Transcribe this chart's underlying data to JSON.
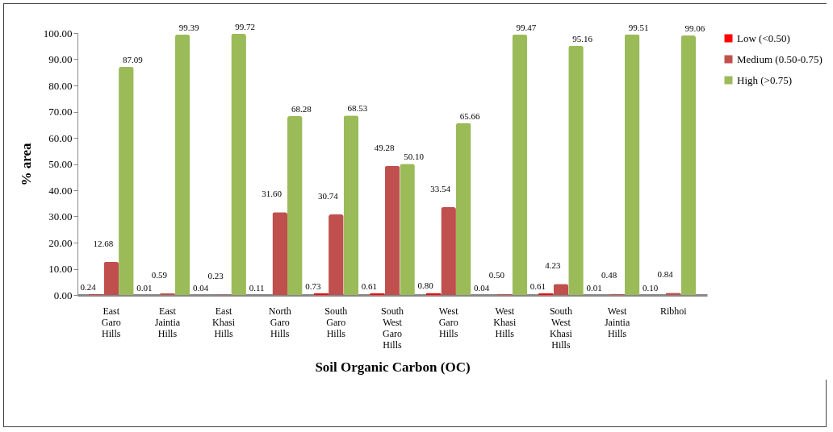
{
  "chart_data": {
    "type": "bar",
    "xlabel": "Soil Organic Carbon (OC)",
    "ylabel": "% area",
    "categories": [
      "East Garo Hills",
      "East Jaintia Hills",
      "East Khasi Hills",
      "North Garo Hills",
      "South Garo Hills",
      "South West Garo Hills",
      "West Garo Hills",
      "West Khasi Hills",
      "South West Khasi Hills",
      "West Jaintia Hills",
      "Ribhoi"
    ],
    "series": [
      {
        "name": "Low (<0.50)",
        "color": "#ff0000",
        "values": [
          0.24,
          0.01,
          0.04,
          0.11,
          0.73,
          0.61,
          0.8,
          0.04,
          0.61,
          0.01,
          0.1
        ],
        "value_labels": [
          "0.24",
          "0.01",
          "0.04",
          "0.11",
          "0.73",
          "0.61",
          "0.80",
          "0.04",
          "0.61",
          "0.01",
          "0.10"
        ]
      },
      {
        "name": "Medium (0.50-0.75)",
        "color": "#c0504d",
        "values": [
          12.68,
          0.59,
          0.23,
          31.6,
          30.74,
          49.28,
          33.54,
          0.5,
          4.23,
          0.48,
          0.84
        ],
        "value_labels": [
          "12.68",
          "0.59",
          "0.23",
          "31.60",
          "30.74",
          "49.28",
          "33.54",
          "0.50",
          "4.23",
          "0.48",
          "0.84"
        ]
      },
      {
        "name": "High (>0.75)",
        "color": "#9bbb59",
        "values": [
          87.09,
          99.39,
          99.72,
          68.28,
          68.53,
          50.1,
          65.66,
          99.47,
          95.16,
          99.51,
          99.06
        ],
        "value_labels": [
          "87.09",
          "99.39",
          "99.72",
          "68.28",
          "68.53",
          "50.10",
          "65.66",
          "99.47",
          "95.16",
          "99.51",
          "99.06"
        ]
      }
    ],
    "ylim": [
      0,
      100
    ],
    "yticks": [
      {
        "value": 0,
        "label": "0.00"
      },
      {
        "value": 10,
        "label": "10.00"
      },
      {
        "value": 20,
        "label": "20.00"
      },
      {
        "value": 30,
        "label": "30.00"
      },
      {
        "value": 40,
        "label": "40.00"
      },
      {
        "value": 50,
        "label": "50.00"
      },
      {
        "value": 60,
        "label": "60.00"
      },
      {
        "value": 70,
        "label": "70.00"
      },
      {
        "value": 80,
        "label": "80.00"
      },
      {
        "value": 90,
        "label": "90.00"
      },
      {
        "value": 100,
        "label": "100.00"
      }
    ],
    "grid": false,
    "legend": "right"
  }
}
